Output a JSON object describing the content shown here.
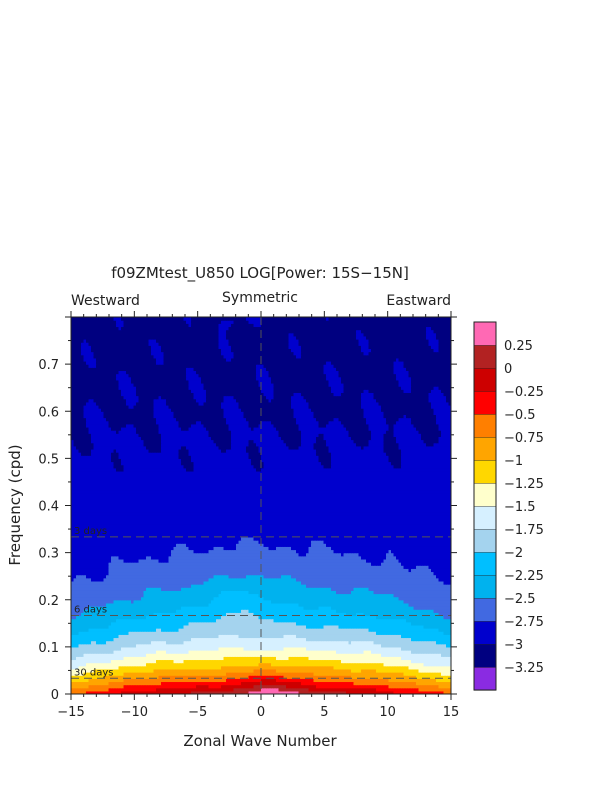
{
  "chart_data": {
    "type": "heatmap",
    "title": "f09ZMtest_U850 LOG[Power: 15S−15N]",
    "subtitle_left": "Westward",
    "subtitle_center": "Symmetric",
    "subtitle_right": "Eastward",
    "xlabel": "Zonal Wave Number",
    "ylabel": "Frequency (cpd)",
    "xlim": [
      -15,
      15
    ],
    "ylim": [
      0,
      0.8
    ],
    "xticks": [
      -15,
      -10,
      -5,
      0,
      5,
      10,
      15
    ],
    "xtick_labels": [
      "−15",
      "−10",
      "−5",
      "0",
      "5",
      "10",
      "15"
    ],
    "yticks": [
      0,
      0.1,
      0.2,
      0.3,
      0.4,
      0.5,
      0.6,
      0.7
    ],
    "ytick_labels": [
      "0",
      "0.1",
      "0.2",
      "0.3",
      "0.4",
      "0.5",
      "0.6",
      "0.7"
    ],
    "reference_lines": [
      {
        "label": "3 days",
        "frequency": 0.3333
      },
      {
        "label": "6 days",
        "frequency": 0.1667
      },
      {
        "label": "30 days",
        "frequency": 0.0333
      }
    ],
    "contour_levels": [
      -3.25,
      -3,
      -2.75,
      -2.5,
      -2.25,
      -2,
      -1.75,
      -1.5,
      -1.25,
      -1,
      -0.75,
      -0.5,
      -0.25,
      0,
      0.25
    ],
    "colorbar": {
      "colors": [
        "#8a2be2",
        "#000080",
        "#0000cd",
        "#4169e1",
        "#00b2ee",
        "#00bfff",
        "#a4d3ee",
        "#d6f0ff",
        "#ffffcc",
        "#ffd700",
        "#ffa500",
        "#ff7f00",
        "#ff0000",
        "#cd0000",
        "#b22222",
        "#ff69b4"
      ],
      "labels": [
        "−3.25",
        "−3",
        "−2.75",
        "−2.5",
        "−2.25",
        "−2",
        "−1.75",
        "−1.5",
        "−1.25",
        "−1",
        "−0.75",
        "−0.5",
        "−0.25",
        "0",
        "0.25"
      ]
    },
    "grid": false
  }
}
